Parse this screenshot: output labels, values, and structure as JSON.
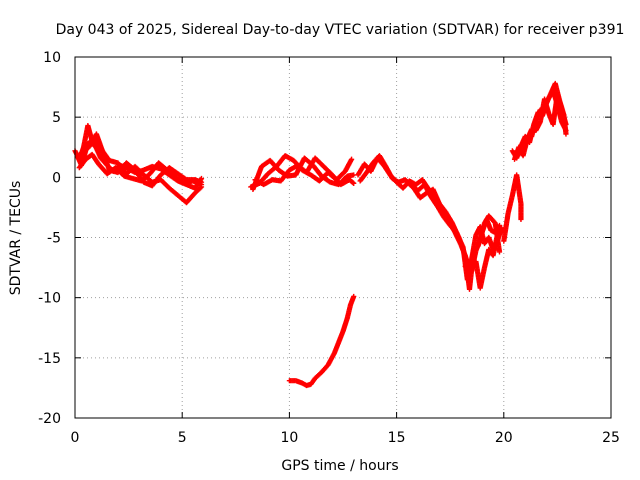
{
  "chart_data": {
    "type": "scatter",
    "title": "Day 043 of 2025, Sidereal Day-to-day VTEC variation (SDTVAR) for receiver p391",
    "xlabel": "GPS time / hours",
    "ylabel": "SDTVAR / TECUs",
    "xlim": [
      0,
      25
    ],
    "ylim": [
      -20,
      10
    ],
    "xticks": [
      0,
      5,
      10,
      15,
      20,
      25
    ],
    "yticks": [
      10,
      5,
      0,
      -5,
      -10,
      -15,
      -20
    ],
    "grid": true,
    "marker": "+",
    "color": "#ff0000",
    "series": [
      {
        "name": "SDTVAR",
        "tracks": [
          [
            [
              0.0,
              2.2
            ],
            [
              0.2,
              1.5
            ],
            [
              0.4,
              2.5
            ],
            [
              0.6,
              4.3
            ],
            [
              0.8,
              3.0
            ],
            [
              1.0,
              2.4
            ],
            [
              1.2,
              1.6
            ],
            [
              1.5,
              1.0
            ],
            [
              1.8,
              0.5
            ],
            [
              2.1,
              1.0
            ],
            [
              2.4,
              0.8
            ],
            [
              2.8,
              0.4
            ],
            [
              3.2,
              0.6
            ],
            [
              3.6,
              0.9
            ],
            [
              4.0,
              0.7
            ],
            [
              4.4,
              0.2
            ],
            [
              4.8,
              -0.3
            ],
            [
              5.2,
              -0.6
            ],
            [
              5.6,
              -0.9
            ],
            [
              5.9,
              -0.1
            ]
          ],
          [
            [
              0.1,
              1.8
            ],
            [
              0.3,
              1.0
            ],
            [
              0.6,
              2.8
            ],
            [
              0.9,
              3.2
            ],
            [
              1.2,
              2.4
            ],
            [
              1.6,
              1.4
            ],
            [
              2.0,
              1.2
            ],
            [
              2.4,
              0.3
            ],
            [
              2.8,
              0.9
            ],
            [
              3.2,
              0.2
            ],
            [
              3.6,
              -0.4
            ],
            [
              4.0,
              -0.2
            ],
            [
              4.4,
              -0.9
            ],
            [
              4.8,
              -1.5
            ],
            [
              5.2,
              -2.1
            ],
            [
              5.6,
              -1.3
            ],
            [
              5.9,
              -0.8
            ]
          ],
          [
            [
              0.2,
              0.8
            ],
            [
              0.5,
              1.5
            ],
            [
              0.8,
              1.9
            ],
            [
              1.1,
              1.1
            ],
            [
              1.5,
              0.3
            ],
            [
              1.9,
              0.8
            ],
            [
              2.3,
              0.1
            ],
            [
              2.7,
              -0.1
            ],
            [
              3.1,
              -0.3
            ],
            [
              3.5,
              0.3
            ],
            [
              3.9,
              1.2
            ],
            [
              4.3,
              0.6
            ],
            [
              4.7,
              0.0
            ],
            [
              5.1,
              -0.5
            ],
            [
              5.5,
              -0.3
            ],
            [
              5.9,
              -0.6
            ]
          ],
          [
            [
              0.3,
              2.0
            ],
            [
              0.7,
              2.6
            ],
            [
              1.0,
              3.6
            ],
            [
              1.3,
              2.1
            ],
            [
              1.6,
              0.6
            ],
            [
              2.0,
              0.4
            ],
            [
              2.4,
              1.2
            ],
            [
              2.8,
              0.6
            ],
            [
              3.2,
              -0.4
            ],
            [
              3.6,
              -0.7
            ],
            [
              4.0,
              0.2
            ],
            [
              4.4,
              0.8
            ],
            [
              4.8,
              0.3
            ],
            [
              5.2,
              -0.2
            ],
            [
              5.6,
              -0.2
            ],
            [
              5.9,
              -0.4
            ]
          ],
          [
            [
              8.2,
              -0.8
            ],
            [
              8.6,
              -0.5
            ],
            [
              9.0,
              0.3
            ],
            [
              9.4,
              0.9
            ],
            [
              9.8,
              1.8
            ],
            [
              10.2,
              1.4
            ],
            [
              10.6,
              0.6
            ],
            [
              11.0,
              0.2
            ],
            [
              11.4,
              -0.3
            ],
            [
              11.8,
              0.4
            ],
            [
              12.2,
              -0.2
            ],
            [
              12.6,
              0.5
            ],
            [
              12.9,
              1.5
            ]
          ],
          [
            [
              8.3,
              -1.0
            ],
            [
              8.7,
              0.9
            ],
            [
              9.1,
              1.4
            ],
            [
              9.5,
              0.6
            ],
            [
              9.9,
              0.1
            ],
            [
              10.3,
              0.2
            ],
            [
              10.7,
              1.6
            ],
            [
              11.1,
              1.0
            ],
            [
              11.5,
              0.1
            ],
            [
              11.9,
              -0.4
            ],
            [
              12.3,
              -0.6
            ],
            [
              12.7,
              0.1
            ],
            [
              13.0,
              0.2
            ]
          ],
          [
            [
              8.4,
              -0.2
            ],
            [
              8.8,
              -0.6
            ],
            [
              9.2,
              -0.2
            ],
            [
              9.6,
              -0.3
            ],
            [
              10.0,
              0.6
            ],
            [
              10.4,
              1.0
            ],
            [
              10.8,
              0.4
            ],
            [
              11.2,
              1.6
            ],
            [
              11.6,
              0.9
            ],
            [
              12.0,
              0.2
            ],
            [
              12.4,
              -0.6
            ],
            [
              12.8,
              -0.2
            ],
            [
              13.0,
              -0.5
            ]
          ],
          [
            [
              13.2,
              0.2
            ],
            [
              13.5,
              1.1
            ],
            [
              13.8,
              0.5
            ],
            [
              14.1,
              1.6
            ],
            [
              14.4,
              1.0
            ],
            [
              14.7,
              0.2
            ],
            [
              15.0,
              -0.4
            ],
            [
              15.3,
              -0.9
            ],
            [
              15.6,
              -0.3
            ],
            [
              15.9,
              -0.6
            ],
            [
              16.2,
              -0.2
            ],
            [
              16.5,
              -1.0
            ],
            [
              16.8,
              -1.5
            ],
            [
              17.1,
              -2.6
            ],
            [
              17.4,
              -3.6
            ],
            [
              17.7,
              -4.5
            ],
            [
              18.0,
              -5.6
            ],
            [
              18.3,
              -7.0
            ],
            [
              18.5,
              -7.8
            ],
            [
              18.7,
              -6.1
            ],
            [
              18.9,
              -5.2
            ],
            [
              19.1,
              -3.8
            ],
            [
              19.3,
              -3.2
            ],
            [
              19.6,
              -3.8
            ],
            [
              19.8,
              -6.2
            ]
          ],
          [
            [
              13.3,
              -0.3
            ],
            [
              13.6,
              0.4
            ],
            [
              13.9,
              1.2
            ],
            [
              14.2,
              1.8
            ],
            [
              14.5,
              0.9
            ],
            [
              14.8,
              -0.1
            ],
            [
              15.1,
              -0.4
            ],
            [
              15.4,
              -0.2
            ],
            [
              15.7,
              -0.7
            ],
            [
              16.0,
              -1.1
            ],
            [
              16.3,
              -0.6
            ],
            [
              16.6,
              -1.6
            ],
            [
              16.9,
              -2.4
            ],
            [
              17.2,
              -3.3
            ],
            [
              17.5,
              -4.0
            ],
            [
              17.8,
              -4.6
            ],
            [
              18.1,
              -5.8
            ],
            [
              18.3,
              -8.5
            ],
            [
              18.5,
              -6.8
            ],
            [
              18.7,
              -4.8
            ],
            [
              18.9,
              -4.1
            ],
            [
              19.1,
              -5.5
            ],
            [
              19.3,
              -5.0
            ],
            [
              19.5,
              -6.0
            ],
            [
              19.7,
              -5.3
            ],
            [
              19.9,
              -4.2
            ]
          ],
          [
            [
              15.5,
              -0.4
            ],
            [
              15.8,
              -0.9
            ],
            [
              16.1,
              -1.7
            ],
            [
              16.4,
              -1.3
            ],
            [
              16.7,
              -1.0
            ],
            [
              17.0,
              -2.2
            ],
            [
              17.3,
              -2.9
            ],
            [
              17.6,
              -3.8
            ],
            [
              17.9,
              -5.0
            ],
            [
              18.2,
              -6.5
            ],
            [
              18.4,
              -9.3
            ],
            [
              18.6,
              -6.0
            ],
            [
              18.8,
              -5.7
            ],
            [
              19.0,
              -4.5
            ],
            [
              19.2,
              -3.5
            ],
            [
              19.4,
              -4.4
            ],
            [
              19.6,
              -4.6
            ],
            [
              19.8,
              -4.0
            ]
          ],
          [
            [
              18.2,
              -7.4
            ],
            [
              18.5,
              -7.6
            ],
            [
              18.7,
              -7.0
            ],
            [
              18.9,
              -9.2
            ],
            [
              19.1,
              -7.5
            ],
            [
              19.3,
              -6.0
            ],
            [
              19.5,
              -6.5
            ],
            [
              19.7,
              -4.8
            ],
            [
              19.9,
              -4.5
            ]
          ],
          [
            [
              20.0,
              -5.3
            ],
            [
              20.2,
              -3.0
            ],
            [
              20.4,
              -1.5
            ],
            [
              20.6,
              0.2
            ],
            [
              20.8,
              -2.2
            ],
            [
              20.8,
              -3.5
            ]
          ],
          [
            [
              20.4,
              2.2
            ],
            [
              20.6,
              1.6
            ],
            [
              20.8,
              2.6
            ],
            [
              21.0,
              3.4
            ],
            [
              21.2,
              2.9
            ],
            [
              21.4,
              4.4
            ],
            [
              21.6,
              5.4
            ],
            [
              21.8,
              5.1
            ],
            [
              22.0,
              6.2
            ],
            [
              22.2,
              7.0
            ],
            [
              22.4,
              7.8
            ],
            [
              22.6,
              6.4
            ],
            [
              22.8,
              5.2
            ],
            [
              22.9,
              3.6
            ]
          ],
          [
            [
              20.5,
              1.5
            ],
            [
              20.7,
              2.5
            ],
            [
              20.9,
              1.8
            ],
            [
              21.1,
              3.2
            ],
            [
              21.3,
              4.0
            ],
            [
              21.5,
              3.9
            ],
            [
              21.7,
              4.6
            ],
            [
              21.9,
              6.5
            ],
            [
              22.1,
              5.3
            ],
            [
              22.3,
              4.4
            ],
            [
              22.5,
              6.9
            ],
            [
              22.7,
              5.7
            ],
            [
              22.9,
              4.4
            ]
          ],
          [
            [
              21.3,
              3.4
            ],
            [
              21.5,
              4.8
            ],
            [
              21.7,
              5.6
            ],
            [
              21.9,
              5.8
            ],
            [
              22.1,
              6.6
            ],
            [
              22.3,
              7.2
            ],
            [
              22.5,
              6.0
            ],
            [
              22.7,
              4.6
            ],
            [
              22.9,
              3.9
            ]
          ],
          [
            [
              10.0,
              -16.9
            ],
            [
              10.3,
              -16.9
            ],
            [
              10.6,
              -17.1
            ],
            [
              10.8,
              -17.3
            ],
            [
              11.0,
              -17.2
            ],
            [
              11.2,
              -16.7
            ],
            [
              11.5,
              -16.2
            ],
            [
              11.8,
              -15.6
            ],
            [
              12.1,
              -14.6
            ],
            [
              12.3,
              -13.7
            ],
            [
              12.5,
              -12.8
            ],
            [
              12.7,
              -11.7
            ],
            [
              12.85,
              -10.6
            ],
            [
              13.0,
              -9.9
            ]
          ]
        ]
      }
    ]
  }
}
